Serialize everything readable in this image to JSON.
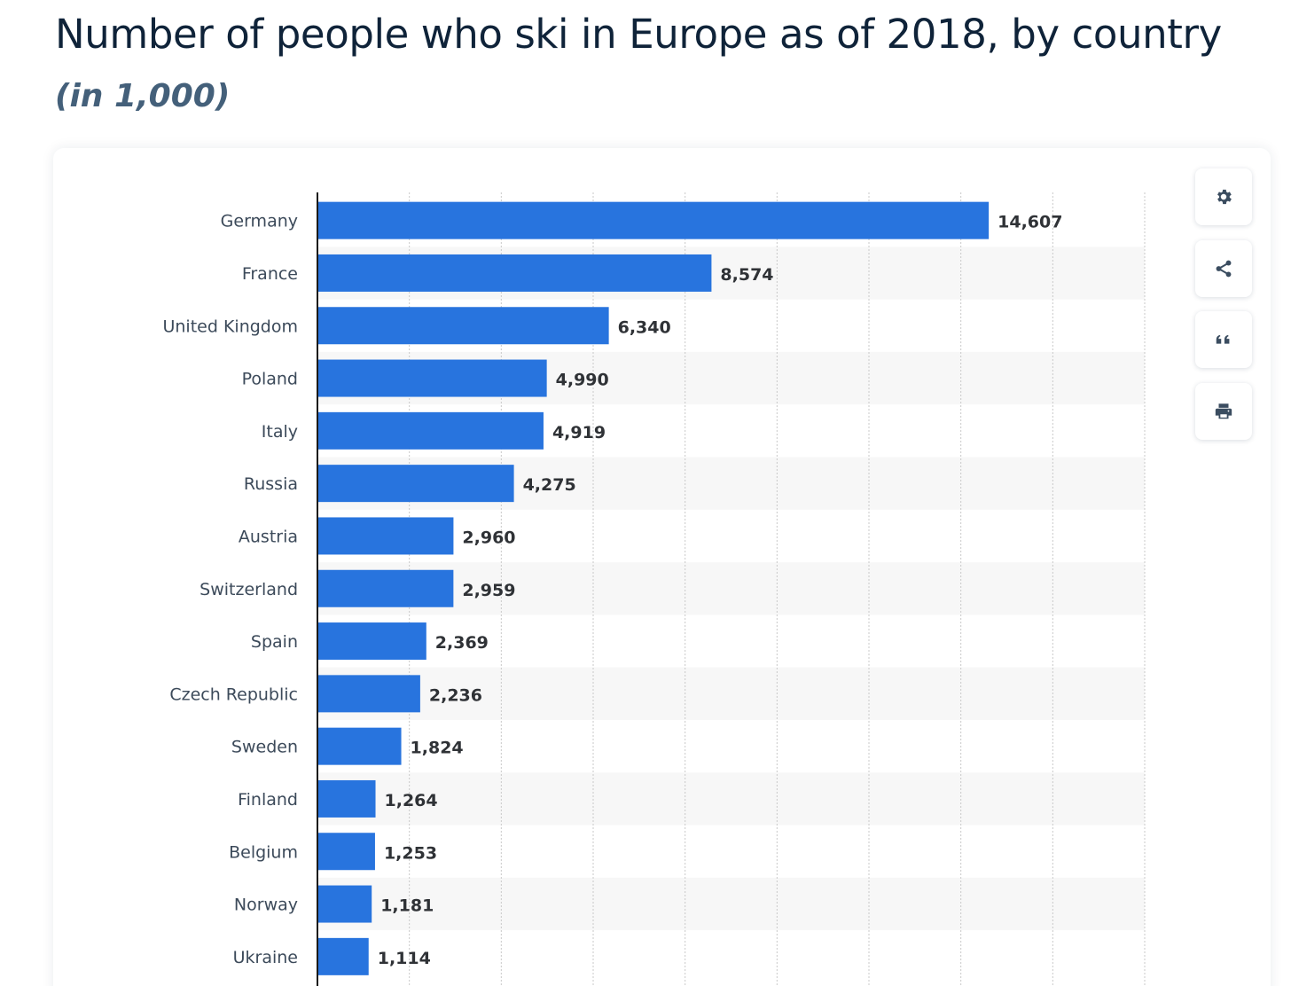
{
  "header": {
    "title": "Number of people who ski in Europe as of 2018, by country",
    "subtitle": "(in 1,000)"
  },
  "toolbar": {
    "buttons": [
      {
        "name": "settings-button",
        "icon": "gear-icon"
      },
      {
        "name": "share-button",
        "icon": "share-icon"
      },
      {
        "name": "cite-button",
        "icon": "quote-icon"
      },
      {
        "name": "print-button",
        "icon": "printer-icon"
      }
    ]
  },
  "colors": {
    "bar": "#2874de",
    "band": "#f7f7f7",
    "grid": "#c9c9c9",
    "axis": "#1a1a1a",
    "icon": "#3b4d60"
  },
  "chart_data": {
    "type": "bar",
    "orientation": "horizontal",
    "categories": [
      "Germany",
      "France",
      "United Kingdom",
      "Poland",
      "Italy",
      "Russia",
      "Austria",
      "Switzerland",
      "Spain",
      "Czech Republic",
      "Sweden",
      "Finland",
      "Belgium",
      "Norway",
      "Ukraine"
    ],
    "values": [
      14607,
      8574,
      6340,
      4990,
      4919,
      4275,
      2960,
      2959,
      2369,
      2236,
      1824,
      1264,
      1253,
      1181,
      1114
    ],
    "value_labels": [
      "14,607",
      "8,574",
      "6,340",
      "4,990",
      "4,919",
      "4,275",
      "2,960",
      "2,959",
      "2,369",
      "2,236",
      "1,824",
      "1,264",
      "1,253",
      "1,181",
      "1,114"
    ],
    "title": "Number of people who ski in Europe as of 2018, by country",
    "subtitle": "(in 1,000)",
    "xlim": [
      0,
      18000
    ],
    "grid_interval": 2000,
    "grid": true,
    "alternating_row_bands": true,
    "legend": "none"
  }
}
